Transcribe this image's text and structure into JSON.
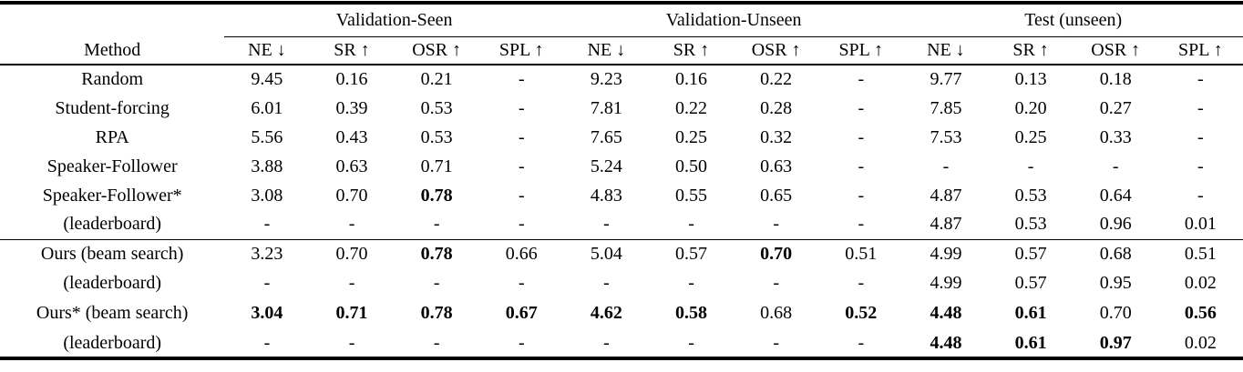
{
  "colors": {
    "background": "#ffffff",
    "text": "#000000",
    "rule": "#000000"
  },
  "table": {
    "method_header": "Method",
    "groups": [
      {
        "label": "Validation-Seen"
      },
      {
        "label": "Validation-Unseen"
      },
      {
        "label": "Test (unseen)"
      }
    ],
    "metric_headers": [
      {
        "label": "NE",
        "arrow": "↓"
      },
      {
        "label": "SR",
        "arrow": "↑"
      },
      {
        "label": "OSR",
        "arrow": "↑"
      },
      {
        "label": "SPL",
        "arrow": "↑"
      }
    ],
    "rows": [
      {
        "method": "Random",
        "cells": [
          "9.45",
          "0.16",
          "0.21",
          "-",
          "9.23",
          "0.16",
          "0.22",
          "-",
          "9.77",
          "0.13",
          "0.18",
          "-"
        ],
        "bold": [],
        "rule_before": false,
        "tall": false
      },
      {
        "method": "Student-forcing",
        "cells": [
          "6.01",
          "0.39",
          "0.53",
          "-",
          "7.81",
          "0.22",
          "0.28",
          "-",
          "7.85",
          "0.20",
          "0.27",
          "-"
        ],
        "bold": [],
        "rule_before": false,
        "tall": false
      },
      {
        "method": "RPA",
        "cells": [
          "5.56",
          "0.43",
          "0.53",
          "-",
          "7.65",
          "0.25",
          "0.32",
          "-",
          "7.53",
          "0.25",
          "0.33",
          "-"
        ],
        "bold": [],
        "rule_before": false,
        "tall": false
      },
      {
        "method": "Speaker-Follower",
        "cells": [
          "3.88",
          "0.63",
          "0.71",
          "-",
          "5.24",
          "0.50",
          "0.63",
          "-",
          "-",
          "-",
          "-",
          "-"
        ],
        "bold": [],
        "rule_before": false,
        "tall": false
      },
      {
        "method": "Speaker-Follower*",
        "cells": [
          "3.08",
          "0.70",
          "0.78",
          "-",
          "4.83",
          "0.55",
          "0.65",
          "-",
          "4.87",
          "0.53",
          "0.64",
          "-"
        ],
        "bold": [
          2
        ],
        "rule_before": false,
        "tall": false
      },
      {
        "method": "(leaderboard)",
        "cells": [
          "-",
          "-",
          "-",
          "-",
          "-",
          "-",
          "-",
          "-",
          "4.87",
          "0.53",
          "0.96",
          "0.01"
        ],
        "bold": [],
        "rule_before": false,
        "tall": false
      },
      {
        "method": "Ours (beam search)",
        "cells": [
          "3.23",
          "0.70",
          "0.78",
          "0.66",
          "5.04",
          "0.57",
          "0.70",
          "0.51",
          "4.99",
          "0.57",
          "0.68",
          "0.51"
        ],
        "bold": [
          2,
          6
        ],
        "rule_before": true,
        "tall": false
      },
      {
        "method": "(leaderboard)",
        "cells": [
          "-",
          "-",
          "-",
          "-",
          "-",
          "-",
          "-",
          "-",
          "4.99",
          "0.57",
          "0.95",
          "0.02"
        ],
        "bold": [],
        "rule_before": false,
        "tall": false
      },
      {
        "method": "Ours* (beam search)",
        "cells": [
          "3.04",
          "0.71",
          "0.78",
          "0.67",
          "4.62",
          "0.58",
          "0.68",
          "0.52",
          "4.48",
          "0.61",
          "0.70",
          "0.56"
        ],
        "bold": [
          0,
          1,
          2,
          3,
          4,
          5,
          7,
          8,
          9,
          11
        ],
        "rule_before": false,
        "tall": true
      },
      {
        "method": "(leaderboard)",
        "cells": [
          "-",
          "-",
          "-",
          "-",
          "-",
          "-",
          "-",
          "-",
          "4.48",
          "0.61",
          "0.97",
          "0.02"
        ],
        "bold": [
          8,
          9,
          10
        ],
        "rule_before": false,
        "tall": false
      }
    ]
  }
}
